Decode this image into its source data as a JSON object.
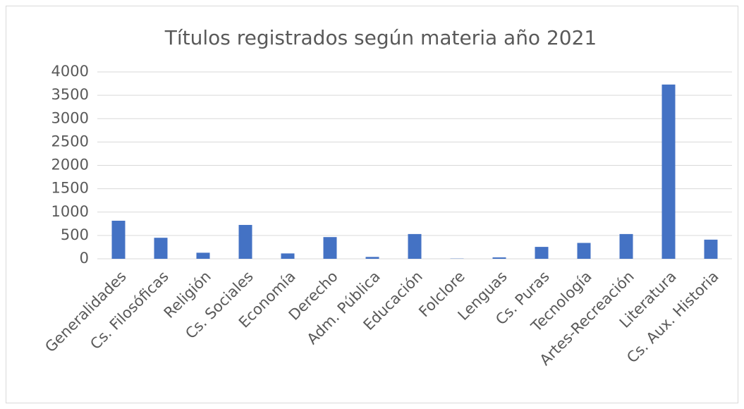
{
  "chart_data": {
    "type": "bar",
    "title": "Títulos registrados según materia año 2021",
    "categories": [
      "Generalidades",
      "Cs. Filosóficas",
      "Religión",
      "Cs. Sociales",
      "Economía",
      "Derecho",
      "Adm. Pública",
      "Educación",
      "Folclore",
      "Lenguas",
      "Cs. Puras",
      "Tecnología",
      "Artes-Recreación",
      "Literatura",
      "Cs. Aux. Historia"
    ],
    "values": [
      815,
      450,
      130,
      725,
      115,
      465,
      40,
      530,
      5,
      30,
      255,
      340,
      530,
      3730,
      410
    ],
    "color": "#4472c4",
    "ylim": [
      0,
      4000
    ],
    "yticks": [
      0,
      500,
      1000,
      1500,
      2000,
      2500,
      3000,
      3500,
      4000
    ],
    "grid": true
  }
}
